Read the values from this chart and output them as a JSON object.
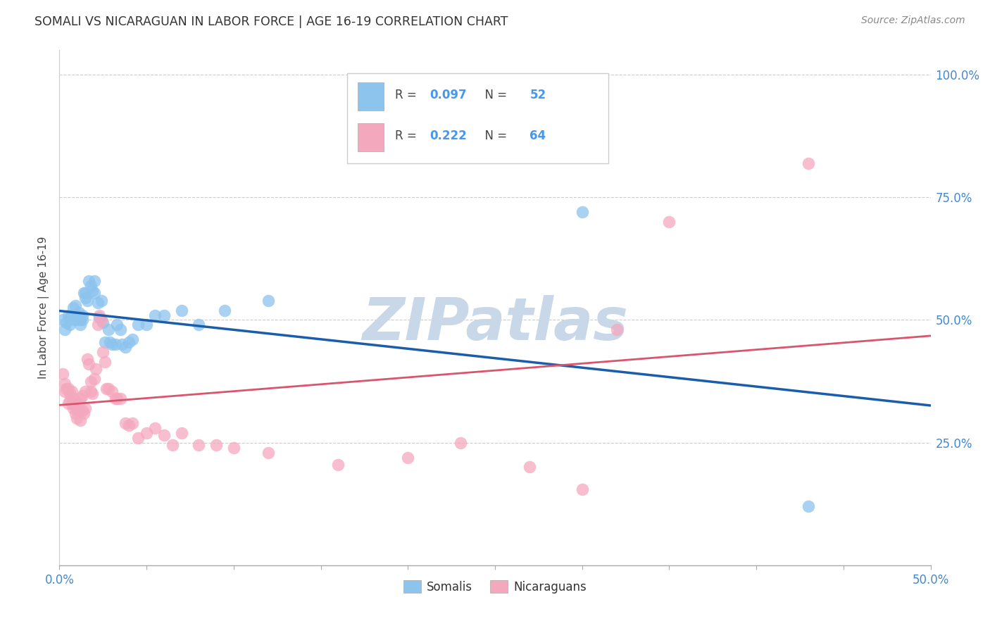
{
  "title": "SOMALI VS NICARAGUAN IN LABOR FORCE | AGE 16-19 CORRELATION CHART",
  "source": "Source: ZipAtlas.com",
  "ylabel": "In Labor Force | Age 16-19",
  "xlim": [
    0.0,
    0.5
  ],
  "ylim": [
    0.0,
    1.05
  ],
  "yticks": [
    0.25,
    0.5,
    0.75,
    1.0
  ],
  "ytick_labels": [
    "25.0%",
    "50.0%",
    "75.0%",
    "100.0%"
  ],
  "xtick_left_label": "0.0%",
  "xtick_right_label": "50.0%",
  "somali_R": 0.097,
  "somali_N": 52,
  "nicaraguan_R": 0.222,
  "nicaraguan_N": 64,
  "somali_color": "#8CC4EE",
  "nicaraguan_color": "#F4A8BE",
  "somali_line_color": "#1A5DAB",
  "nicaraguan_line_color": "#D9556E",
  "background_color": "#ffffff",
  "watermark_text": "ZIPatlas",
  "watermark_color": "#C8D8E8",
  "somali_x": [
    0.002,
    0.003,
    0.004,
    0.005,
    0.006,
    0.006,
    0.007,
    0.008,
    0.008,
    0.009,
    0.01,
    0.01,
    0.011,
    0.011,
    0.012,
    0.012,
    0.013,
    0.013,
    0.014,
    0.015,
    0.015,
    0.016,
    0.017,
    0.018,
    0.019,
    0.02,
    0.02,
    0.022,
    0.023,
    0.024,
    0.025,
    0.026,
    0.028,
    0.029,
    0.03,
    0.032,
    0.033,
    0.035,
    0.036,
    0.038,
    0.04,
    0.042,
    0.045,
    0.05,
    0.055,
    0.06,
    0.07,
    0.08,
    0.095,
    0.12,
    0.3,
    0.43
  ],
  "somali_y": [
    0.5,
    0.48,
    0.495,
    0.51,
    0.505,
    0.49,
    0.51,
    0.5,
    0.525,
    0.53,
    0.51,
    0.5,
    0.505,
    0.515,
    0.5,
    0.49,
    0.5,
    0.51,
    0.555,
    0.545,
    0.555,
    0.54,
    0.58,
    0.57,
    0.56,
    0.555,
    0.58,
    0.535,
    0.505,
    0.54,
    0.495,
    0.455,
    0.48,
    0.455,
    0.45,
    0.45,
    0.49,
    0.48,
    0.45,
    0.445,
    0.455,
    0.46,
    0.49,
    0.49,
    0.51,
    0.51,
    0.52,
    0.49,
    0.52,
    0.54,
    0.72,
    0.12
  ],
  "nicaraguan_x": [
    0.002,
    0.003,
    0.003,
    0.004,
    0.005,
    0.005,
    0.006,
    0.006,
    0.007,
    0.007,
    0.008,
    0.008,
    0.009,
    0.009,
    0.01,
    0.01,
    0.011,
    0.011,
    0.012,
    0.012,
    0.013,
    0.013,
    0.014,
    0.015,
    0.015,
    0.016,
    0.017,
    0.018,
    0.018,
    0.019,
    0.02,
    0.021,
    0.022,
    0.023,
    0.024,
    0.025,
    0.026,
    0.027,
    0.028,
    0.03,
    0.032,
    0.033,
    0.035,
    0.038,
    0.04,
    0.042,
    0.045,
    0.05,
    0.055,
    0.06,
    0.065,
    0.07,
    0.08,
    0.09,
    0.1,
    0.12,
    0.16,
    0.2,
    0.23,
    0.27,
    0.3,
    0.32,
    0.35,
    0.43
  ],
  "nicaraguan_y": [
    0.39,
    0.355,
    0.37,
    0.36,
    0.33,
    0.36,
    0.335,
    0.35,
    0.33,
    0.355,
    0.32,
    0.34,
    0.31,
    0.33,
    0.3,
    0.32,
    0.315,
    0.33,
    0.295,
    0.34,
    0.315,
    0.345,
    0.31,
    0.32,
    0.355,
    0.42,
    0.41,
    0.355,
    0.375,
    0.35,
    0.38,
    0.4,
    0.49,
    0.51,
    0.5,
    0.435,
    0.415,
    0.36,
    0.36,
    0.355,
    0.34,
    0.34,
    0.34,
    0.29,
    0.285,
    0.29,
    0.26,
    0.27,
    0.28,
    0.265,
    0.245,
    0.27,
    0.245,
    0.245,
    0.24,
    0.23,
    0.205,
    0.22,
    0.25,
    0.2,
    0.155,
    0.48,
    0.7,
    0.82
  ]
}
